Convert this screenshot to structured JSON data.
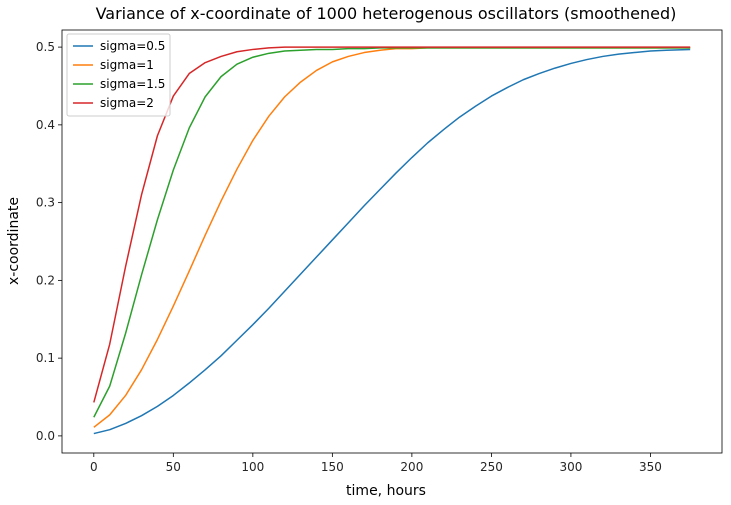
{
  "chart_data": {
    "type": "line",
    "title": "Variance of x-coordinate of 1000 heterogenous oscillators (smoothened)",
    "xlabel": "time, hours",
    "ylabel": "x-coordinate",
    "xlim": [
      -20,
      395
    ],
    "ylim": [
      -0.022,
      0.522
    ],
    "xticks": [
      0,
      50,
      100,
      150,
      200,
      250,
      300,
      350
    ],
    "yticks": [
      0.0,
      0.1,
      0.2,
      0.3,
      0.4,
      0.5
    ],
    "ytick_labels": [
      "0.0",
      "0.1",
      "0.2",
      "0.3",
      "0.4",
      "0.5"
    ],
    "grid": false,
    "legend_position": "top-left",
    "x": [
      0,
      10,
      20,
      30,
      40,
      50,
      60,
      70,
      80,
      90,
      100,
      110,
      120,
      130,
      140,
      150,
      160,
      170,
      180,
      190,
      200,
      210,
      220,
      230,
      240,
      250,
      260,
      270,
      280,
      290,
      300,
      310,
      320,
      330,
      340,
      350,
      360,
      375
    ],
    "series": [
      {
        "name": "sigma=0.5",
        "color": "#1f77b4",
        "values": [
          0.003,
          0.008,
          0.016,
          0.026,
          0.038,
          0.052,
          0.068,
          0.085,
          0.103,
          0.123,
          0.143,
          0.164,
          0.186,
          0.208,
          0.23,
          0.252,
          0.274,
          0.296,
          0.317,
          0.338,
          0.358,
          0.377,
          0.394,
          0.41,
          0.424,
          0.437,
          0.448,
          0.458,
          0.466,
          0.473,
          0.479,
          0.484,
          0.488,
          0.491,
          0.493,
          0.495,
          0.496,
          0.497
        ]
      },
      {
        "name": "sigma=1",
        "color": "#ff7f0e",
        "values": [
          0.011,
          0.027,
          0.052,
          0.085,
          0.124,
          0.167,
          0.212,
          0.258,
          0.302,
          0.343,
          0.38,
          0.411,
          0.436,
          0.455,
          0.47,
          0.481,
          0.488,
          0.493,
          0.496,
          0.498,
          0.498,
          0.499,
          0.499,
          0.499,
          0.499,
          0.499,
          0.499,
          0.499,
          0.499,
          0.499,
          0.499,
          0.499,
          0.499,
          0.499,
          0.499,
          0.499,
          0.499,
          0.499
        ]
      },
      {
        "name": "sigma=1.5",
        "color": "#2ca02c",
        "values": [
          0.024,
          0.064,
          0.132,
          0.207,
          0.278,
          0.342,
          0.396,
          0.436,
          0.462,
          0.478,
          0.487,
          0.492,
          0.495,
          0.496,
          0.497,
          0.497,
          0.498,
          0.498,
          0.499,
          0.499,
          0.499,
          0.499,
          0.499,
          0.499,
          0.499,
          0.499,
          0.499,
          0.499,
          0.499,
          0.499,
          0.499,
          0.499,
          0.499,
          0.499,
          0.499,
          0.499,
          0.499,
          0.499
        ]
      },
      {
        "name": "sigma=2",
        "color": "#d62728",
        "values": [
          0.043,
          0.118,
          0.218,
          0.31,
          0.386,
          0.437,
          0.466,
          0.48,
          0.488,
          0.494,
          0.497,
          0.499,
          0.5,
          0.5,
          0.5,
          0.5,
          0.5,
          0.5,
          0.5,
          0.5,
          0.5,
          0.5,
          0.5,
          0.5,
          0.5,
          0.5,
          0.5,
          0.5,
          0.5,
          0.5,
          0.5,
          0.5,
          0.5,
          0.5,
          0.5,
          0.5,
          0.5,
          0.5
        ]
      }
    ]
  }
}
